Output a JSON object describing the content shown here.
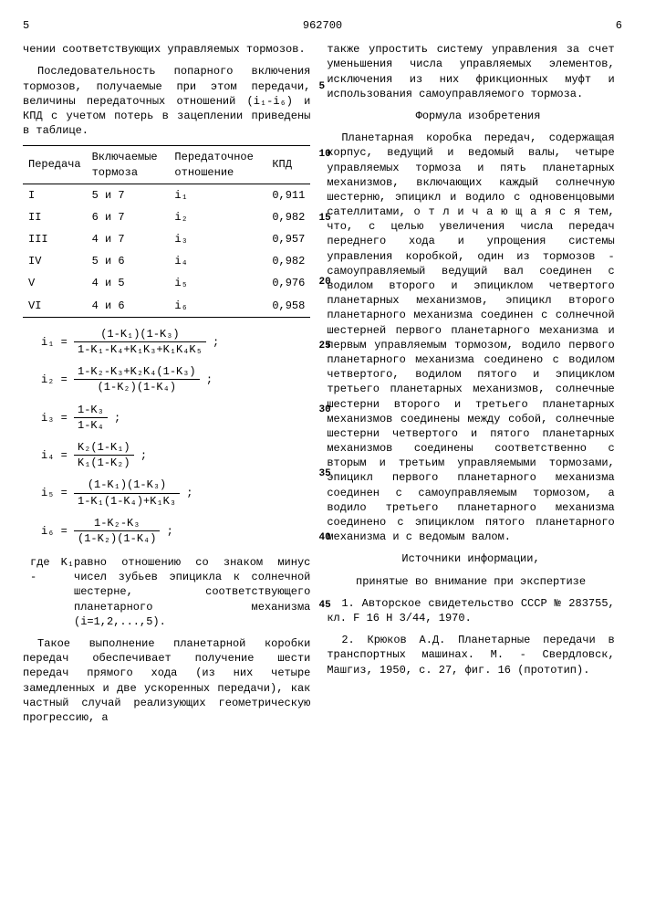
{
  "header": {
    "page_left": "5",
    "doc_number": "962700",
    "page_right": "6"
  },
  "left": {
    "cont_line": "чении соответствующих управляемых тормозов.",
    "para_intro": "Последовательность попарного включения тормозов, получаемые при этом передачи, величины передаточных отношений (i₁-i₆) и КПД с учетом потерь в зацеплении приведены в таблице.",
    "table": {
      "headers": [
        "Передача",
        "Включаемые тормоза",
        "Передаточное отношение",
        "КПД"
      ],
      "rows": [
        [
          "I",
          "5 и 7",
          "i₁",
          "0,911"
        ],
        [
          "II",
          "6 и 7",
          "i₂",
          "0,982"
        ],
        [
          "III",
          "4 и 7",
          "i₃",
          "0,957"
        ],
        [
          "IV",
          "5 и 6",
          "i₄",
          "0,982"
        ],
        [
          "V",
          "4 и 5",
          "i₅",
          "0,976"
        ],
        [
          "VI",
          "4 и 6",
          "i₆",
          "0,958"
        ]
      ]
    },
    "formulas": [
      {
        "lhs": "i₁",
        "num": "(1-K₁)(1-K₃)",
        "den": "1-K₁-K₄+K₁K₃+K₁K₄K₅"
      },
      {
        "lhs": "i₂",
        "num": "1-K₂-K₃+K₂K₄(1-K₃)",
        "den": "(1-K₂)(1-K₄)"
      },
      {
        "lhs": "i₃",
        "num": "1-K₃",
        "den": "1-K₄"
      },
      {
        "lhs": "i₄",
        "num": "K₂(1-K₁)",
        "den": "K₁(1-K₂)"
      },
      {
        "lhs": "i₅",
        "num": "(1-K₁)(1-K₃)",
        "den": "1-K₁(1-K₄)+K₁K₃"
      },
      {
        "lhs": "i₆",
        "num": "1-K₂-K₃",
        "den": "(1-K₂)(1-K₄)"
      }
    ],
    "where_label": "где K₁ -",
    "where_text": "равно отношению со знаком минус чисел зубьев эпицикла к солнечной шестерне, соответствующего планетарного механизма (i=1,2,...,5).",
    "para_conclusion": "Такое выполнение планетарной коробки передач обеспечивает получение шести передач прямого хода (из них четыре замедленных и две ускоренных передачи), как частный случай реализующих геометрическую прогрессию, а"
  },
  "right": {
    "cont_para": "также упростить систему управления за счет уменьшения числа управляемых элементов, исключения из них фрикционных муфт и использования самоуправляемого тормоза.",
    "claims_title": "Формула изобретения",
    "claims_body": "Планетарная коробка передач, содержащая корпус, ведущий и ведомый валы, четыре управляемых тормоза и пять планетарных механизмов, включающих каждый солнечную шестерню, эпицикл и водило с одновенцовыми сателлитами, о т л и ч а ю щ а я с я тем, что, с целью увеличения числа передач переднего хода и упрощения системы управления коробкой, один из тормозов - самоуправляемый ведущий вал соединен с водилом второго и эпициклом четвертого планетарных механизмов, эпицикл второго планетарного механизма соединен с солнечной шестерней первого планетарного механизма и первым управляемым тормозом, водило первого планетарного механизма соединено с водилом четвертого, водилом пятого и эпициклом третьего планетарных механизмов, солнечные шестерни второго и третьего планетарных механизмов соединены между собой, солнечные шестерни четвертого и пятого планетарных механизмов соединены соответственно с вторым и третьим управляемыми тормозами, эпицикл первого планетарного механизма соединен с самоуправляемым тормозом, а водило третьего планетарного механизма соединено с эпициклом пятого планетарного механизма и с ведомым валом.",
    "refs_title": "Источники информации,",
    "refs_sub": "принятые во внимание при экспертизе",
    "ref1": "1. Авторское свидетельство СССР № 283755, кл. F 16 H 3/44, 1970.",
    "ref2": "2. Крюков А.Д. Планетарные передачи в транспортных машинах. М. - Свердловск, Машгиз, 1950, с. 27, фиг. 16 (прототип)."
  },
  "line_markers": [
    "5",
    "10",
    "15",
    "20",
    "25",
    "30",
    "35",
    "40",
    "45"
  ]
}
